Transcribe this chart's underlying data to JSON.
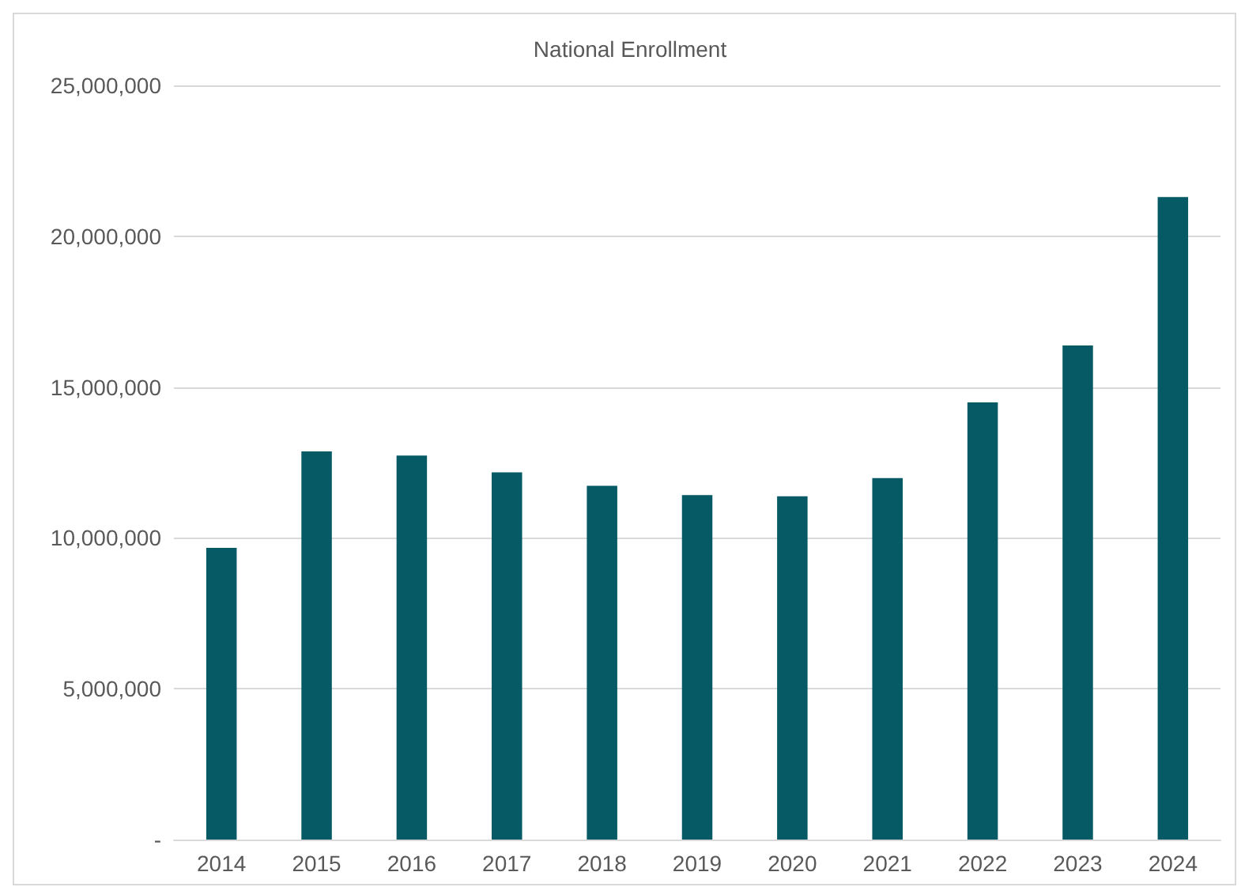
{
  "chart_data": {
    "type": "bar",
    "title": "National Enrollment",
    "categories": [
      "2014",
      "2015",
      "2016",
      "2017",
      "2018",
      "2019",
      "2020",
      "2021",
      "2022",
      "2023",
      "2024"
    ],
    "values": [
      9670000,
      12870000,
      12730000,
      12170000,
      11730000,
      11420000,
      11380000,
      11980000,
      14490000,
      16380000,
      21300000
    ],
    "color": "#055a65",
    "ylim": [
      0,
      25000000
    ],
    "yticks": [
      {
        "value": 0,
        "label": "-"
      },
      {
        "value": 5000000,
        "label": "5,000,000"
      },
      {
        "value": 10000000,
        "label": "10,000,000"
      },
      {
        "value": 15000000,
        "label": "15,000,000"
      },
      {
        "value": 20000000,
        "label": "20,000,000"
      },
      {
        "value": 25000000,
        "label": "25,000,000"
      }
    ],
    "grid": "y"
  }
}
